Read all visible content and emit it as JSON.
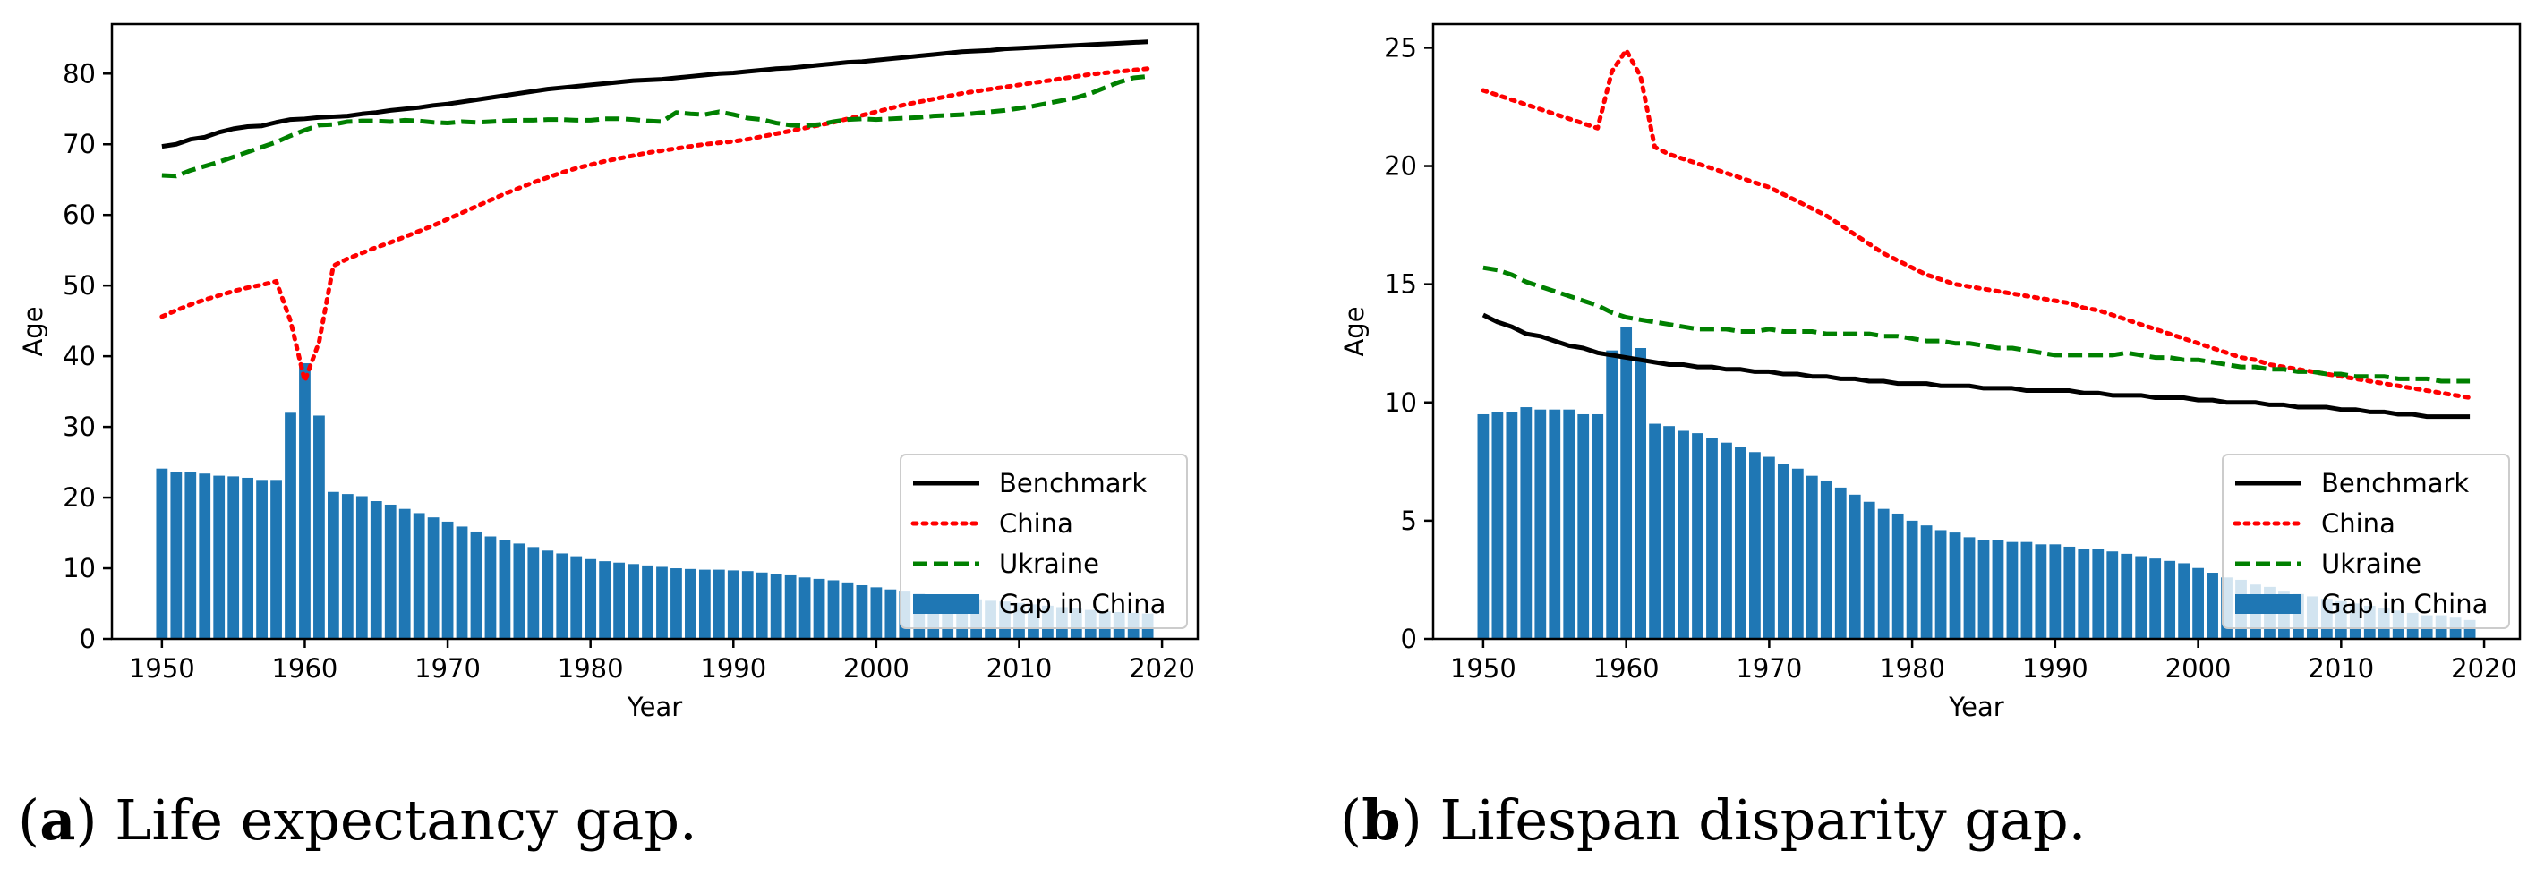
{
  "colors": {
    "benchmark": "#000000",
    "china": "#ff0000",
    "ukraine": "#008000",
    "bar": "#1f77b4"
  },
  "chart_data": [
    {
      "type": "bar+line",
      "panel": "a",
      "caption_letter": "a",
      "caption_text": " Life expectancy gap.",
      "title": "",
      "xlabel": "Year",
      "ylabel": "Age",
      "xlim": [
        1946.5,
        2022.5
      ],
      "ylim": [
        0,
        87
      ],
      "xticks": [
        1950,
        1960,
        1970,
        1980,
        1990,
        2000,
        2010,
        2020
      ],
      "yticks": [
        0,
        10,
        20,
        30,
        40,
        50,
        60,
        70,
        80
      ],
      "legend": {
        "position": "lower-right",
        "labels": [
          "Benchmark",
          "China",
          "Ukraine",
          "Gap in China"
        ]
      },
      "years": [
        1950,
        1951,
        1952,
        1953,
        1954,
        1955,
        1956,
        1957,
        1958,
        1959,
        1960,
        1961,
        1962,
        1963,
        1964,
        1965,
        1966,
        1967,
        1968,
        1969,
        1970,
        1971,
        1972,
        1973,
        1974,
        1975,
        1976,
        1977,
        1978,
        1979,
        1980,
        1981,
        1982,
        1983,
        1984,
        1985,
        1986,
        1987,
        1988,
        1989,
        1990,
        1991,
        1992,
        1993,
        1994,
        1995,
        1996,
        1997,
        1998,
        1999,
        2000,
        2001,
        2002,
        2003,
        2004,
        2005,
        2006,
        2007,
        2008,
        2009,
        2010,
        2011,
        2012,
        2013,
        2014,
        2015,
        2016,
        2017,
        2018,
        2019
      ],
      "series": [
        {
          "name": "Benchmark",
          "kind": "line",
          "style": "solid",
          "values": [
            69.7,
            70.0,
            70.7,
            71.0,
            71.7,
            72.2,
            72.5,
            72.6,
            73.1,
            73.5,
            73.6,
            73.8,
            73.9,
            74.0,
            74.3,
            74.5,
            74.8,
            75.0,
            75.2,
            75.5,
            75.7,
            76.0,
            76.3,
            76.6,
            76.9,
            77.2,
            77.5,
            77.8,
            78.0,
            78.2,
            78.4,
            78.6,
            78.8,
            79.0,
            79.1,
            79.2,
            79.4,
            79.6,
            79.8,
            80.0,
            80.1,
            80.3,
            80.5,
            80.7,
            80.8,
            81.0,
            81.2,
            81.4,
            81.6,
            81.7,
            81.9,
            82.1,
            82.3,
            82.5,
            82.7,
            82.9,
            83.1,
            83.2,
            83.3,
            83.5,
            83.6,
            83.7,
            83.8,
            83.9,
            84.0,
            84.1,
            84.2,
            84.3,
            84.4,
            84.5
          ]
        },
        {
          "name": "China",
          "kind": "line",
          "style": "dotted",
          "values": [
            45.6,
            46.5,
            47.3,
            48.0,
            48.6,
            49.2,
            49.7,
            50.1,
            50.6,
            45.0,
            36.5,
            42.0,
            52.8,
            53.8,
            54.6,
            55.4,
            56.1,
            56.9,
            57.7,
            58.5,
            59.4,
            60.3,
            61.2,
            62.1,
            63.0,
            63.8,
            64.6,
            65.3,
            66.0,
            66.6,
            67.1,
            67.6,
            68.0,
            68.4,
            68.8,
            69.1,
            69.4,
            69.7,
            70.0,
            70.2,
            70.4,
            70.7,
            71.1,
            71.5,
            71.9,
            72.3,
            72.7,
            73.1,
            73.6,
            74.1,
            74.6,
            75.1,
            75.6,
            76.0,
            76.4,
            76.8,
            77.2,
            77.5,
            77.8,
            78.1,
            78.4,
            78.7,
            79.0,
            79.3,
            79.6,
            79.9,
            80.1,
            80.3,
            80.5,
            80.7
          ]
        },
        {
          "name": "Ukraine",
          "kind": "line",
          "style": "dashed",
          "values": [
            65.6,
            65.5,
            66.3,
            66.9,
            67.5,
            68.2,
            68.9,
            69.6,
            70.3,
            71.2,
            72.0,
            72.7,
            72.8,
            73.2,
            73.3,
            73.3,
            73.2,
            73.4,
            73.3,
            73.1,
            73.0,
            73.2,
            73.1,
            73.2,
            73.3,
            73.4,
            73.4,
            73.5,
            73.5,
            73.4,
            73.4,
            73.6,
            73.6,
            73.5,
            73.3,
            73.2,
            74.5,
            74.3,
            74.2,
            74.6,
            74.2,
            73.7,
            73.5,
            73.0,
            72.7,
            72.6,
            72.8,
            73.2,
            73.5,
            73.6,
            73.5,
            73.6,
            73.7,
            73.8,
            74.0,
            74.1,
            74.2,
            74.4,
            74.6,
            74.8,
            75.1,
            75.4,
            75.8,
            76.2,
            76.6,
            77.2,
            78.0,
            78.8,
            79.4,
            79.6
          ]
        },
        {
          "name": "Gap in China",
          "kind": "bar",
          "values": [
            24.1,
            23.6,
            23.6,
            23.4,
            23.1,
            23.0,
            22.8,
            22.5,
            22.5,
            32.0,
            39.0,
            31.6,
            20.8,
            20.5,
            20.2,
            19.5,
            19.0,
            18.4,
            17.8,
            17.2,
            16.6,
            15.9,
            15.2,
            14.5,
            14.0,
            13.5,
            13.0,
            12.5,
            12.1,
            11.7,
            11.3,
            11.0,
            10.8,
            10.6,
            10.4,
            10.2,
            10.0,
            9.9,
            9.8,
            9.8,
            9.7,
            9.6,
            9.4,
            9.2,
            9.0,
            8.7,
            8.5,
            8.3,
            8.0,
            7.6,
            7.3,
            7.0,
            6.7,
            6.4,
            6.2,
            6.0,
            5.8,
            5.6,
            5.4,
            5.3,
            5.1,
            4.9,
            4.7,
            4.5,
            4.3,
            4.1,
            3.9,
            3.8,
            3.7,
            3.6
          ]
        }
      ]
    },
    {
      "type": "bar+line",
      "panel": "b",
      "caption_letter": "b",
      "caption_text": " Lifespan disparity gap.",
      "title": "",
      "xlabel": "Year",
      "ylabel": "Age",
      "xlim": [
        1946.5,
        2022.5
      ],
      "ylim": [
        0,
        26
      ],
      "xticks": [
        1950,
        1960,
        1970,
        1980,
        1990,
        2000,
        2010,
        2020
      ],
      "yticks": [
        0,
        5,
        10,
        15,
        20,
        25
      ],
      "legend": {
        "position": "lower-right",
        "labels": [
          "Benchmark",
          "China",
          "Ukraine",
          "Gap in China"
        ]
      },
      "years": [
        1950,
        1951,
        1952,
        1953,
        1954,
        1955,
        1956,
        1957,
        1958,
        1959,
        1960,
        1961,
        1962,
        1963,
        1964,
        1965,
        1966,
        1967,
        1968,
        1969,
        1970,
        1971,
        1972,
        1973,
        1974,
        1975,
        1976,
        1977,
        1978,
        1979,
        1980,
        1981,
        1982,
        1983,
        1984,
        1985,
        1986,
        1987,
        1988,
        1989,
        1990,
        1991,
        1992,
        1993,
        1994,
        1995,
        1996,
        1997,
        1998,
        1999,
        2000,
        2001,
        2002,
        2003,
        2004,
        2005,
        2006,
        2007,
        2008,
        2009,
        2010,
        2011,
        2012,
        2013,
        2014,
        2015,
        2016,
        2017,
        2018,
        2019
      ],
      "series": [
        {
          "name": "Benchmark",
          "kind": "line",
          "style": "solid",
          "values": [
            13.7,
            13.4,
            13.2,
            12.9,
            12.8,
            12.6,
            12.4,
            12.3,
            12.1,
            12.0,
            11.9,
            11.8,
            11.7,
            11.6,
            11.6,
            11.5,
            11.5,
            11.4,
            11.4,
            11.3,
            11.3,
            11.2,
            11.2,
            11.1,
            11.1,
            11.0,
            11.0,
            10.9,
            10.9,
            10.8,
            10.8,
            10.8,
            10.7,
            10.7,
            10.7,
            10.6,
            10.6,
            10.6,
            10.5,
            10.5,
            10.5,
            10.5,
            10.4,
            10.4,
            10.3,
            10.3,
            10.3,
            10.2,
            10.2,
            10.2,
            10.1,
            10.1,
            10.0,
            10.0,
            10.0,
            9.9,
            9.9,
            9.8,
            9.8,
            9.8,
            9.7,
            9.7,
            9.6,
            9.6,
            9.5,
            9.5,
            9.4,
            9.4,
            9.4,
            9.4
          ]
        },
        {
          "name": "China",
          "kind": "line",
          "style": "dotted",
          "values": [
            23.2,
            23.0,
            22.8,
            22.6,
            22.4,
            22.2,
            22.0,
            21.8,
            21.6,
            24.0,
            24.9,
            23.8,
            20.8,
            20.5,
            20.3,
            20.1,
            19.9,
            19.7,
            19.5,
            19.3,
            19.1,
            18.8,
            18.5,
            18.2,
            17.9,
            17.5,
            17.1,
            16.7,
            16.3,
            16.0,
            15.7,
            15.4,
            15.2,
            15.0,
            14.9,
            14.8,
            14.7,
            14.6,
            14.5,
            14.4,
            14.3,
            14.2,
            14.0,
            13.9,
            13.7,
            13.5,
            13.3,
            13.1,
            12.9,
            12.7,
            12.5,
            12.3,
            12.1,
            11.9,
            11.8,
            11.6,
            11.5,
            11.4,
            11.3,
            11.2,
            11.1,
            11.0,
            10.9,
            10.8,
            10.7,
            10.6,
            10.5,
            10.4,
            10.3,
            10.2
          ]
        },
        {
          "name": "Ukraine",
          "kind": "line",
          "style": "dashed",
          "values": [
            15.7,
            15.6,
            15.4,
            15.1,
            14.9,
            14.7,
            14.5,
            14.3,
            14.1,
            13.8,
            13.6,
            13.5,
            13.4,
            13.3,
            13.2,
            13.1,
            13.1,
            13.1,
            13.0,
            13.0,
            13.1,
            13.0,
            13.0,
            13.0,
            12.9,
            12.9,
            12.9,
            12.9,
            12.8,
            12.8,
            12.7,
            12.6,
            12.6,
            12.5,
            12.5,
            12.4,
            12.3,
            12.3,
            12.2,
            12.1,
            12.0,
            12.0,
            12.0,
            12.0,
            12.0,
            12.1,
            12.0,
            11.9,
            11.9,
            11.8,
            11.8,
            11.7,
            11.6,
            11.5,
            11.5,
            11.4,
            11.4,
            11.3,
            11.3,
            11.2,
            11.2,
            11.1,
            11.1,
            11.1,
            11.0,
            11.0,
            11.0,
            10.9,
            10.9,
            10.9
          ]
        },
        {
          "name": "Gap in China",
          "kind": "bar",
          "values": [
            9.5,
            9.6,
            9.6,
            9.8,
            9.7,
            9.7,
            9.7,
            9.5,
            9.5,
            12.2,
            13.2,
            12.3,
            9.1,
            9.0,
            8.8,
            8.7,
            8.5,
            8.3,
            8.1,
            7.9,
            7.7,
            7.4,
            7.2,
            6.9,
            6.7,
            6.4,
            6.1,
            5.8,
            5.5,
            5.3,
            5.0,
            4.8,
            4.6,
            4.5,
            4.3,
            4.2,
            4.2,
            4.1,
            4.1,
            4.0,
            4.0,
            3.9,
            3.8,
            3.8,
            3.7,
            3.6,
            3.5,
            3.4,
            3.3,
            3.2,
            3.0,
            2.8,
            2.6,
            2.5,
            2.3,
            2.2,
            2.0,
            1.9,
            1.8,
            1.7,
            1.6,
            1.5,
            1.4,
            1.3,
            1.2,
            1.1,
            1.0,
            1.0,
            0.9,
            0.8
          ]
        }
      ]
    }
  ]
}
